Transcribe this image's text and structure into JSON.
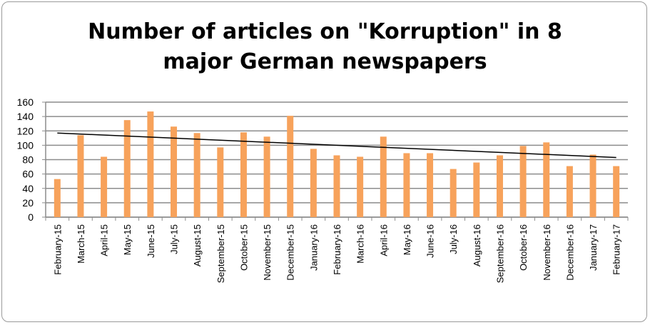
{
  "chart_data": {
    "type": "bar",
    "title_line1": "Number of articles on \"Korruption\" in 8",
    "title_line2": "major German newspapers",
    "xlabel": "",
    "ylabel": "",
    "ylim": [
      0,
      160
    ],
    "yticks": [
      0,
      20,
      40,
      60,
      80,
      100,
      120,
      140,
      160
    ],
    "grid": true,
    "bar_color": "#F7A25B",
    "trendline_color": "#000000",
    "trendline": {
      "start": 117,
      "end": 83
    },
    "categories": [
      "February-15",
      "March-15",
      "April-15",
      "May-15",
      "June-15",
      "July-15",
      "August-15",
      "September-15",
      "October-15",
      "November-15",
      "December-15",
      "January-16",
      "February-16",
      "March-16",
      "April-16",
      "May-16",
      "June-16",
      "July-16",
      "August-16",
      "September-16",
      "October-16",
      "November-16",
      "December-16",
      "January-17",
      "February-17"
    ],
    "values": [
      53,
      114,
      84,
      135,
      147,
      126,
      117,
      97,
      118,
      112,
      141,
      95,
      86,
      84,
      112,
      89,
      89,
      67,
      76,
      86,
      99,
      104,
      71,
      87,
      71
    ]
  }
}
